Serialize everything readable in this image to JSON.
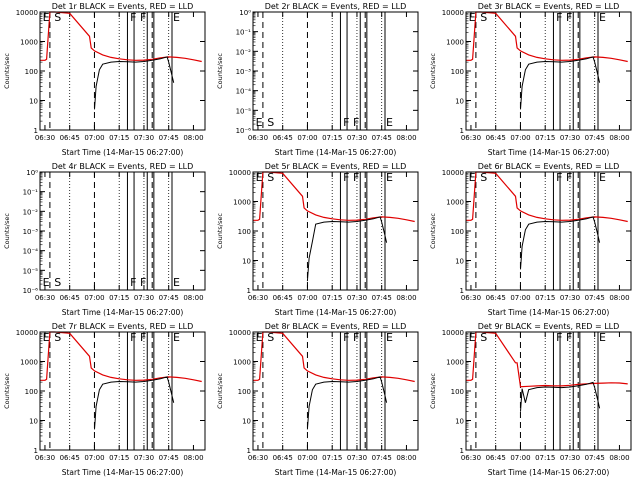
{
  "chart_data": [
    {
      "type": "line",
      "title": "Det 1r BLACK = Events, RED = LLD",
      "xlabel": "Start Time (14-Mar-15 06:27:00)",
      "ylabel": "Counts/sec",
      "yscale": "log",
      "ylim": [
        1,
        10000
      ],
      "ytick_labels": [
        "1",
        "10",
        "100",
        "1000",
        "10000"
      ],
      "xtick_labels": [
        "06:30",
        "06:45",
        "07:00",
        "07:15",
        "07:30",
        "07:45",
        "08:00"
      ],
      "xlim": [
        "06:27",
        "08:07"
      ],
      "markers": [
        "E",
        "S",
        "F",
        "F",
        "E"
      ],
      "data_present": true,
      "lld_style": "normal",
      "events_style": "normal"
    },
    {
      "type": "line",
      "title": "Det 2r BLACK = Events, RED = LLD",
      "xlabel": "Start Time (14-Mar-15 06:27:00)",
      "ylabel": "Counts/sec",
      "yscale": "log",
      "ylim": [
        1e-06,
        1
      ],
      "ytick_labels": [
        "10⁻⁶",
        "10⁻⁵",
        "10⁻⁴",
        "10⁻³",
        "10⁻²",
        "10⁻¹",
        "10⁰"
      ],
      "xtick_labels": [
        "06:30",
        "06:45",
        "07:00",
        "07:15",
        "07:30",
        "07:45",
        "08:00"
      ],
      "xlim": [
        "06:27",
        "08:07"
      ],
      "markers": [
        "E",
        "S",
        "F",
        "F",
        "E"
      ],
      "data_present": false,
      "lld_style": "none",
      "events_style": "none"
    },
    {
      "type": "line",
      "title": "Det 3r BLACK = Events, RED = LLD",
      "xlabel": "Start Time (14-Mar-15 06:27:00)",
      "ylabel": "Counts/sec",
      "yscale": "log",
      "ylim": [
        1,
        10000
      ],
      "ytick_labels": [
        "1",
        "10",
        "100",
        "1000",
        "10000"
      ],
      "xtick_labels": [
        "06:30",
        "06:45",
        "07:00",
        "07:15",
        "07:30",
        "07:45",
        "08:00"
      ],
      "xlim": [
        "06:27",
        "08:07"
      ],
      "markers": [
        "E",
        "S",
        "F",
        "F",
        "E"
      ],
      "data_present": true,
      "lld_style": "normal",
      "events_style": "normal"
    },
    {
      "type": "line",
      "title": "Det 4r BLACK = Events, RED = LLD",
      "xlabel": "Start Time (14-Mar-15 06:27:00)",
      "ylabel": "Counts/sec",
      "yscale": "log",
      "ylim": [
        1e-06,
        1
      ],
      "ytick_labels": [
        "10⁻⁶",
        "10⁻⁵",
        "10⁻⁴",
        "10⁻³",
        "10⁻²",
        "10⁻¹",
        "10⁰"
      ],
      "xtick_labels": [
        "06:30",
        "06:45",
        "07:00",
        "07:15",
        "07:30",
        "07:45",
        "08:00"
      ],
      "xlim": [
        "06:27",
        "08:07"
      ],
      "markers": [
        "E",
        "S",
        "F",
        "F",
        "E"
      ],
      "data_present": false,
      "lld_style": "none",
      "events_style": "none"
    },
    {
      "type": "line",
      "title": "Det 5r BLACK = Events, RED = LLD",
      "xlabel": "Start Time (14-Mar-15 06:27:00)",
      "ylabel": "Counts/sec",
      "yscale": "log",
      "ylim": [
        1,
        10000
      ],
      "ytick_labels": [
        "1",
        "10",
        "100",
        "1000",
        "10000"
      ],
      "xtick_labels": [
        "06:30",
        "06:45",
        "07:00",
        "07:15",
        "07:30",
        "07:45",
        "08:00"
      ],
      "xlim": [
        "06:27",
        "08:07"
      ],
      "markers": [
        "E",
        "S",
        "F",
        "F",
        "E"
      ],
      "data_present": true,
      "lld_style": "normal",
      "events_style": "drop"
    },
    {
      "type": "line",
      "title": "Det 6r BLACK = Events, RED = LLD",
      "xlabel": "Start Time (14-Mar-15 06:27:00)",
      "ylabel": "Counts/sec",
      "yscale": "log",
      "ylim": [
        1,
        10000
      ],
      "ytick_labels": [
        "1",
        "10",
        "100",
        "1000",
        "10000"
      ],
      "xtick_labels": [
        "06:30",
        "06:45",
        "07:00",
        "07:15",
        "07:30",
        "07:45",
        "08:00"
      ],
      "xlim": [
        "06:27",
        "08:07"
      ],
      "markers": [
        "E",
        "S",
        "F",
        "F",
        "E"
      ],
      "data_present": true,
      "lld_style": "normal",
      "events_style": "normal"
    },
    {
      "type": "line",
      "title": "Det 7r BLACK = Events, RED = LLD",
      "xlabel": "Start Time (14-Mar-15 06:27:00)",
      "ylabel": "Counts/sec",
      "yscale": "log",
      "ylim": [
        1,
        10000
      ],
      "ytick_labels": [
        "1",
        "10",
        "100",
        "1000",
        "10000"
      ],
      "xtick_labels": [
        "06:30",
        "06:45",
        "07:00",
        "07:15",
        "07:30",
        "07:45",
        "08:00"
      ],
      "xlim": [
        "06:27",
        "08:07"
      ],
      "markers": [
        "E",
        "S",
        "F",
        "F",
        "E"
      ],
      "data_present": true,
      "lld_style": "normal",
      "events_style": "normal"
    },
    {
      "type": "line",
      "title": "Det 8r BLACK = Events, RED = LLD",
      "xlabel": "Start Time (14-Mar-15 06:27:00)",
      "ylabel": "Counts/sec",
      "yscale": "log",
      "ylim": [
        1,
        10000
      ],
      "ytick_labels": [
        "1",
        "10",
        "100",
        "1000",
        "10000"
      ],
      "xtick_labels": [
        "06:30",
        "06:45",
        "07:00",
        "07:15",
        "07:30",
        "07:45",
        "08:00"
      ],
      "xlim": [
        "06:27",
        "08:07"
      ],
      "markers": [
        "E",
        "S",
        "F",
        "F",
        "E"
      ],
      "data_present": true,
      "lld_style": "normal",
      "events_style": "normal"
    },
    {
      "type": "line",
      "title": "Det 9r BLACK = Events, RED = LLD",
      "xlabel": "Start Time (14-Mar-15 06:27:00)",
      "ylabel": "Counts/sec",
      "yscale": "log",
      "ylim": [
        1,
        10000
      ],
      "ytick_labels": [
        "1",
        "10",
        "100",
        "1000",
        "10000"
      ],
      "xtick_labels": [
        "06:30",
        "06:45",
        "07:00",
        "07:15",
        "07:30",
        "07:45",
        "08:00"
      ],
      "xlim": [
        "06:27",
        "08:07"
      ],
      "markers": [
        "E",
        "S",
        "F",
        "F",
        "E"
      ],
      "data_present": true,
      "lld_style": "flat",
      "events_style": "dip"
    }
  ],
  "series_colors": {
    "events": "#000000",
    "lld": "#e00000"
  },
  "dashed_times": [
    "06:33",
    "07:00",
    "07:35"
  ],
  "dotted_times": [
    "06:45",
    "07:15",
    "07:30",
    "07:45"
  ],
  "solid_times": [
    "07:20",
    "07:24",
    "07:32",
    "07:36",
    "07:47"
  ],
  "lld_series": {
    "x": [
      "06:27",
      "06:30",
      "06:31",
      "06:33",
      "06:36",
      "06:45",
      "06:57",
      "06:58",
      "07:00",
      "07:05",
      "07:10",
      "07:15",
      "07:20",
      "07:25",
      "07:30",
      "07:35",
      "07:40",
      "07:45",
      "07:50",
      "07:55",
      "08:00",
      "08:05"
    ],
    "y": [
      230,
      230,
      250,
      10000,
      11000,
      9000,
      1500,
      600,
      480,
      350,
      290,
      260,
      240,
      230,
      235,
      250,
      280,
      300,
      290,
      270,
      240,
      210
    ]
  },
  "events_series": {
    "x": [
      "07:00",
      "07:01",
      "07:03",
      "07:05",
      "07:10",
      "07:15",
      "07:20",
      "07:25",
      "07:30",
      "07:35",
      "07:40",
      "07:44",
      "07:45",
      "07:47",
      "07:48"
    ],
    "y": [
      5,
      30,
      110,
      170,
      200,
      210,
      205,
      200,
      210,
      230,
      260,
      300,
      200,
      70,
      40
    ]
  }
}
